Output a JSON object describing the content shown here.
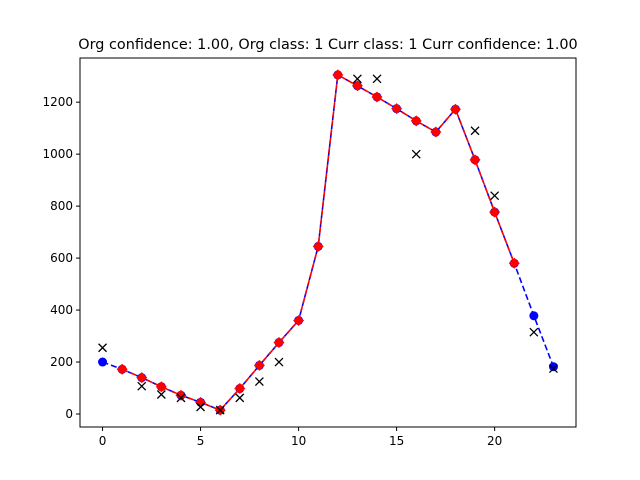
{
  "chart_data": {
    "type": "line",
    "title": "Org confidence: 1.00, Org class: 1 Curr class: 1 Curr confidence: 1.00",
    "xlabel": "",
    "ylabel": "",
    "xlim": [
      -1.15,
      24.15
    ],
    "ylim": [
      -50,
      1370
    ],
    "xticks": [
      0,
      5,
      10,
      15,
      20
    ],
    "yticks": [
      0,
      200,
      400,
      600,
      800,
      1000,
      1200
    ],
    "grid": false,
    "legend": "none",
    "colors": {
      "blue_series": "#0000ff",
      "red_series": "#ff0000",
      "black_marks": "#000000"
    },
    "series": [
      {
        "style": "blue-dashed-circles",
        "x": [
          0,
          1,
          2,
          3,
          4,
          5,
          6,
          7,
          8,
          9,
          10,
          11,
          12,
          13,
          14,
          15,
          16,
          17,
          18,
          19,
          20,
          21,
          22,
          23
        ],
        "y": [
          200,
          172,
          140,
          105,
          72,
          45,
          15,
          98,
          187,
          275,
          360,
          645,
          1305,
          1263,
          1220,
          1175,
          1128,
          1085,
          1173,
          978,
          777,
          580,
          378,
          182
        ]
      },
      {
        "style": "red-dashed-diamonds",
        "x": [
          1,
          2,
          3,
          4,
          5,
          6,
          7,
          8,
          9,
          10,
          11,
          12,
          13,
          14,
          15,
          16,
          17,
          18,
          19,
          20,
          21
        ],
        "y": [
          172,
          140,
          105,
          72,
          45,
          15,
          98,
          187,
          275,
          360,
          645,
          1305,
          1263,
          1220,
          1175,
          1128,
          1085,
          1173,
          978,
          777,
          580
        ]
      },
      {
        "style": "black-x-markers",
        "x": [
          0,
          2,
          3,
          4,
          5,
          6,
          7,
          8,
          9,
          13,
          14,
          16,
          19,
          20,
          22,
          23
        ],
        "y": [
          255,
          107,
          75,
          62,
          27,
          15,
          62,
          125,
          200,
          1290,
          1290,
          1000,
          1090,
          840,
          315,
          175
        ]
      }
    ]
  }
}
